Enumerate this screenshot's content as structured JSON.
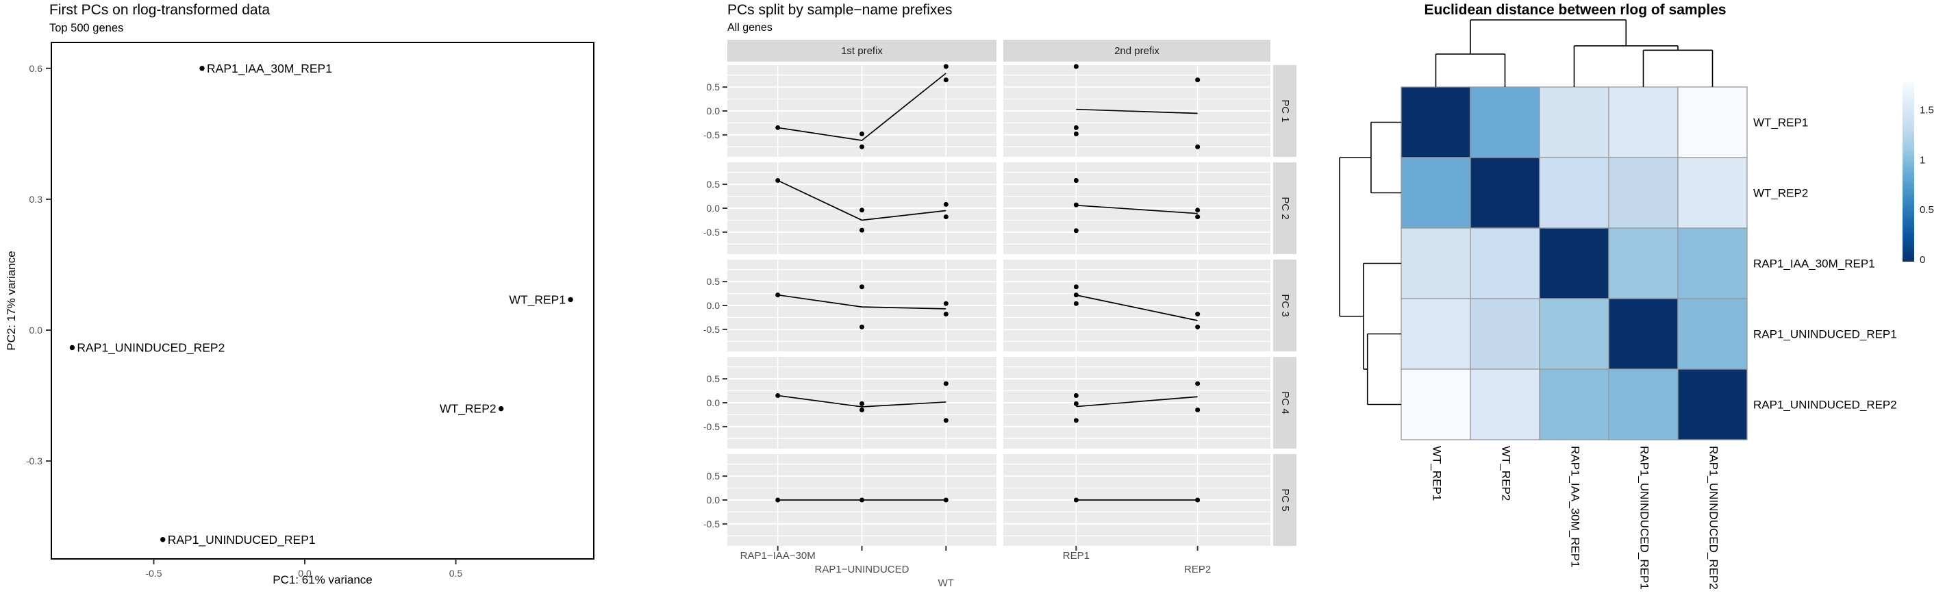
{
  "figures": {
    "pca": {
      "title": "First PCs on rlog-transformed data",
      "subtitle": "Top 500 genes",
      "xlabel": "PC1: 61% variance",
      "ylabel": "PC2: 17% variance"
    },
    "facets": {
      "title": "PCs split by sample−name prefixes",
      "subtitle": "All genes"
    },
    "heatmap": {
      "title": "Euclidean distance between rlog of samples"
    }
  },
  "colors": {
    "panel_bg": "#EBEBEB",
    "strip_bg": "#D9D9D9",
    "gridline": "#FFFFFF",
    "tick_text": "#4D4D4D",
    "strip_text": "#1A1A1A",
    "text": "#000000",
    "heatmap_border": "#999999",
    "heatmap_dark": "#08306B",
    "heatmap_light": "#F7FBFF"
  },
  "chart_data": [
    {
      "type": "scatter",
      "title": "First PCs on rlog-transformed data",
      "subtitle": "Top 500 genes",
      "xlabel": "PC1: 61% variance",
      "ylabel": "PC2: 17% variance",
      "xlim": [
        -0.84,
        0.96
      ],
      "ylim": [
        -0.53,
        0.66
      ],
      "x_ticks": [
        {
          "value": -0.5,
          "label": "-0.5"
        },
        {
          "value": 0.0,
          "label": "0.0"
        },
        {
          "value": 0.5,
          "label": "0.5"
        }
      ],
      "y_ticks": [
        {
          "value": 0.6,
          "label": "0.6"
        },
        {
          "value": 0.3,
          "label": "0.3"
        },
        {
          "value": 0.0,
          "label": "0.0"
        },
        {
          "value": -0.3,
          "label": "-0.3"
        }
      ],
      "grid": false,
      "points": [
        {
          "label": "RAP1_IAA_30M_REP1",
          "x": -0.34,
          "y": 0.6,
          "label_side": "right"
        },
        {
          "label": "WT_REP1",
          "x": 0.88,
          "y": 0.07,
          "label_side": "left"
        },
        {
          "label": "RAP1_UNINDUCED_REP2",
          "x": -0.77,
          "y": -0.04,
          "label_side": "right"
        },
        {
          "label": "WT_REP2",
          "x": 0.65,
          "y": -0.18,
          "label_side": "left"
        },
        {
          "label": "RAP1_UNINDUCED_REP1",
          "x": -0.47,
          "y": -0.48,
          "label_side": "right"
        }
      ]
    },
    {
      "type": "line",
      "title": "PCs split by sample−name prefixes",
      "subtitle": "All genes",
      "col_facets": [
        "1st prefix",
        "2nd prefix"
      ],
      "row_facets": [
        "PC 1",
        "PC 2",
        "PC 3",
        "PC 4",
        "PC 5"
      ],
      "categories": [
        [
          "RAP1−IAA−30M",
          "RAP1−UNINDUCED",
          "WT"
        ],
        [
          "REP1",
          "REP2"
        ]
      ],
      "y_ticks": [
        {
          "value": 0.5,
          "label": "0.5"
        },
        {
          "value": 0.0,
          "label": "0.0"
        },
        {
          "value": -0.5,
          "label": "-0.5"
        }
      ],
      "y_minor": [
        0.75,
        0.25,
        -0.25,
        -0.75
      ],
      "ylim": [
        -0.96,
        0.96
      ],
      "legend_position": "none",
      "panels": [
        {
          "pc": "PC 1",
          "groups": [
            [
              [
                -0.35
              ],
              [
                -0.48,
                -0.75
              ],
              [
                0.93,
                0.65
              ]
            ],
            [
              [
                0.93,
                -0.35,
                -0.48
              ],
              [
                0.65,
                -0.75
              ]
            ]
          ]
        },
        {
          "pc": "PC 2",
          "groups": [
            [
              [
                0.58
              ],
              [
                -0.04,
                -0.46
              ],
              [
                0.08,
                -0.18
              ]
            ],
            [
              [
                0.58,
                0.07,
                -0.47
              ],
              [
                -0.04,
                -0.18
              ]
            ]
          ]
        },
        {
          "pc": "PC 3",
          "groups": [
            [
              [
                0.22
              ],
              [
                0.39,
                -0.45
              ],
              [
                0.04,
                -0.18
              ]
            ],
            [
              [
                0.39,
                0.22,
                0.04
              ],
              [
                -0.18,
                -0.45
              ]
            ]
          ]
        },
        {
          "pc": "PC 4",
          "groups": [
            [
              [
                0.15
              ],
              [
                -0.02,
                -0.15
              ],
              [
                0.4,
                -0.37
              ]
            ],
            [
              [
                0.15,
                -0.02,
                -0.37
              ],
              [
                0.4,
                -0.15
              ]
            ]
          ]
        },
        {
          "pc": "PC 5",
          "groups": [
            [
              [
                0.0
              ],
              [
                0.0
              ],
              [
                0.0
              ]
            ],
            [
              [
                0.0
              ],
              [
                0.0
              ]
            ]
          ]
        }
      ]
    },
    {
      "type": "heatmap",
      "title": "Euclidean distance between rlog of samples",
      "labels": [
        "WT_REP1",
        "WT_REP2",
        "RAP1_IAA_30M_REP1",
        "RAP1_UNINDUCED_REP1",
        "RAP1_UNINDUCED_REP2"
      ],
      "values": [
        [
          0.0,
          0.68,
          1.32,
          1.38,
          1.78
        ],
        [
          0.68,
          0.0,
          1.28,
          1.22,
          1.5
        ],
        [
          1.32,
          1.28,
          0.0,
          1.02,
          0.97
        ],
        [
          1.38,
          1.22,
          1.02,
          0.0,
          0.92
        ],
        [
          1.78,
          1.5,
          0.97,
          0.92,
          0.0
        ]
      ],
      "cell_colors": [
        [
          "#08306B",
          "#6AAAD5",
          "#D3E3F1",
          "#DAE7F5",
          "#F7FBFF"
        ],
        [
          "#6AAAD5",
          "#08306B",
          "#CBDDF0",
          "#C3D8EC",
          "#DCE8F6"
        ],
        [
          "#D3E3F1",
          "#CBDDF0",
          "#08306B",
          "#9CC7E1",
          "#8CBFDD"
        ],
        [
          "#DAE7F5",
          "#C3D8EC",
          "#9CC7E1",
          "#08306B",
          "#84BADB"
        ],
        [
          "#F7FBFF",
          "#DCE8F6",
          "#8CBFDD",
          "#84BADB",
          "#08306B"
        ]
      ],
      "legend": {
        "min": 0,
        "max": 1.78,
        "ticks": [
          {
            "value": 1.5,
            "label": "1.5"
          },
          {
            "value": 1.0,
            "label": "1"
          },
          {
            "value": 0.5,
            "label": "0.5"
          },
          {
            "value": 0.0,
            "label": "0"
          }
        ],
        "gradient": [
          "#08306B",
          "#08519C",
          "#2171B5",
          "#4292C6",
          "#6BAED6",
          "#9ECAE1",
          "#C6DBEF",
          "#DEEBF7",
          "#F7FBFF"
        ]
      },
      "dendrogram": {
        "h": 1.55,
        "children": [
          {
            "h": 0.76,
            "children": [
              {
                "leaf": 0
              },
              {
                "leaf": 1
              }
            ]
          },
          {
            "h": 0.95,
            "children": [
              {
                "leaf": 2
              },
              {
                "h": 0.85,
                "children": [
                  {
                    "leaf": 3
                  },
                  {
                    "leaf": 4
                  }
                ]
              }
            ]
          }
        ]
      }
    }
  ]
}
